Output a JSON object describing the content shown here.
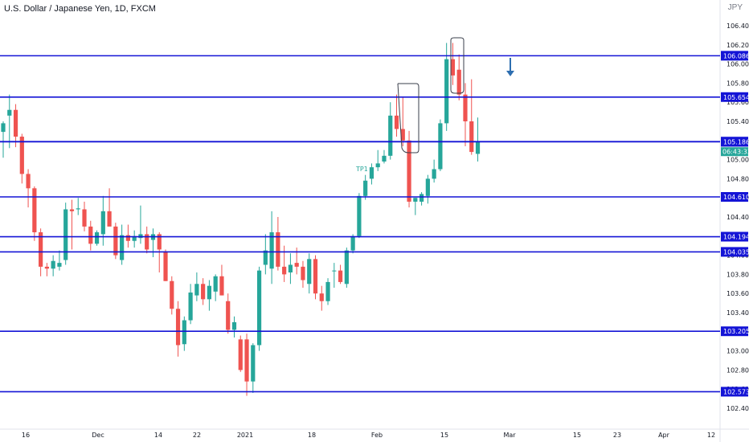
{
  "header": {
    "symbol_title": "U.S. Dollar / Japanese Yen, 1D, FXCM",
    "scale_indicator": "JPY"
  },
  "colors": {
    "up": "#26a69a",
    "down": "#ef5350",
    "level_line": "#1414d6",
    "label_bg": "#1414d6",
    "countdown_bg": "#26a69a",
    "annotation": "#2d6eb0"
  },
  "chart_data": {
    "type": "candlestick",
    "symbol": "U.S. Dollar / Japanese Yen",
    "interval": "1D",
    "source": "FXCM",
    "ylim": [
      102.3,
      106.55
    ],
    "y_ticks": [
      "106.400",
      "106.200",
      "106.000",
      "105.800",
      "105.600",
      "105.400",
      "105.200",
      "105.000",
      "104.800",
      "104.600",
      "104.400",
      "104.200",
      "104.000",
      "103.800",
      "103.600",
      "103.400",
      "103.200",
      "103.000",
      "102.800",
      "102.600",
      "102.400"
    ],
    "x_tick_labels": [
      "16",
      "Dec",
      "14",
      "22",
      "2021",
      "18",
      "Feb",
      "15",
      "Mar",
      "15",
      "23",
      "Apr",
      "12"
    ],
    "horizontal_levels": [
      "106.086",
      "105.654",
      "105.188",
      "105.186",
      "104.610",
      "104.194",
      "104.035",
      "103.205",
      "102.573"
    ],
    "price_label": "105.188",
    "countdown": "06:43:32",
    "annotations": [
      "TP1"
    ],
    "candles": [
      {
        "o": 105.29,
        "h": 105.4,
        "l": 105.02,
        "c": 105.38
      },
      {
        "o": 105.46,
        "h": 105.68,
        "l": 105.12,
        "c": 105.52
      },
      {
        "o": 105.52,
        "h": 105.58,
        "l": 105.13,
        "c": 105.24
      },
      {
        "o": 105.24,
        "h": 105.27,
        "l": 104.75,
        "c": 104.85
      },
      {
        "o": 104.85,
        "h": 104.9,
        "l": 104.5,
        "c": 104.7
      },
      {
        "o": 104.7,
        "h": 104.72,
        "l": 104.15,
        "c": 104.24
      },
      {
        "o": 104.24,
        "h": 104.28,
        "l": 103.78,
        "c": 103.88
      },
      {
        "o": 103.88,
        "h": 103.92,
        "l": 103.78,
        "c": 103.86
      },
      {
        "o": 103.86,
        "h": 104.0,
        "l": 103.78,
        "c": 103.94
      },
      {
        "o": 103.88,
        "h": 104.05,
        "l": 103.84,
        "c": 103.92
      },
      {
        "o": 103.95,
        "h": 104.55,
        "l": 103.9,
        "c": 104.48
      },
      {
        "o": 104.48,
        "h": 104.58,
        "l": 104.06,
        "c": 104.46
      },
      {
        "o": 104.48,
        "h": 104.6,
        "l": 104.42,
        "c": 104.49
      },
      {
        "o": 104.48,
        "h": 104.56,
        "l": 104.25,
        "c": 104.3
      },
      {
        "o": 104.3,
        "h": 104.36,
        "l": 104.05,
        "c": 104.12
      },
      {
        "o": 104.12,
        "h": 104.26,
        "l": 104.1,
        "c": 104.24
      },
      {
        "o": 104.22,
        "h": 104.62,
        "l": 104.1,
        "c": 104.46
      },
      {
        "o": 104.46,
        "h": 104.7,
        "l": 104.34,
        "c": 104.3
      },
      {
        "o": 104.3,
        "h": 104.34,
        "l": 103.96,
        "c": 104.0
      },
      {
        "o": 103.95,
        "h": 104.32,
        "l": 103.9,
        "c": 104.21
      },
      {
        "o": 104.21,
        "h": 104.32,
        "l": 104.08,
        "c": 104.15
      },
      {
        "o": 104.15,
        "h": 104.26,
        "l": 104.08,
        "c": 104.2
      },
      {
        "o": 104.18,
        "h": 104.52,
        "l": 104.12,
        "c": 104.22
      },
      {
        "o": 104.22,
        "h": 104.3,
        "l": 104.02,
        "c": 104.06
      },
      {
        "o": 104.16,
        "h": 104.28,
        "l": 103.98,
        "c": 104.22
      },
      {
        "o": 104.22,
        "h": 104.24,
        "l": 103.82,
        "c": 104.06
      },
      {
        "o": 104.04,
        "h": 104.06,
        "l": 103.73,
        "c": 103.73
      },
      {
        "o": 103.73,
        "h": 103.78,
        "l": 103.38,
        "c": 103.44
      },
      {
        "o": 103.44,
        "h": 103.52,
        "l": 102.94,
        "c": 103.06
      },
      {
        "o": 103.07,
        "h": 103.36,
        "l": 103.0,
        "c": 103.32
      },
      {
        "o": 103.32,
        "h": 103.7,
        "l": 103.28,
        "c": 103.61
      },
      {
        "o": 103.58,
        "h": 103.82,
        "l": 103.52,
        "c": 103.7
      },
      {
        "o": 103.7,
        "h": 103.76,
        "l": 103.48,
        "c": 103.54
      },
      {
        "o": 103.54,
        "h": 103.74,
        "l": 103.42,
        "c": 103.68
      },
      {
        "o": 103.62,
        "h": 103.8,
        "l": 103.52,
        "c": 103.78
      },
      {
        "o": 103.78,
        "h": 103.9,
        "l": 103.58,
        "c": 103.58
      },
      {
        "o": 103.52,
        "h": 103.6,
        "l": 103.18,
        "c": 103.22
      },
      {
        "o": 103.22,
        "h": 103.36,
        "l": 103.14,
        "c": 103.3
      },
      {
        "o": 103.12,
        "h": 103.16,
        "l": 102.78,
        "c": 102.8
      },
      {
        "o": 103.12,
        "h": 103.18,
        "l": 102.53,
        "c": 102.68
      },
      {
        "o": 102.68,
        "h": 103.08,
        "l": 102.56,
        "c": 103.06
      },
      {
        "o": 103.06,
        "h": 103.88,
        "l": 103.0,
        "c": 103.84
      },
      {
        "o": 103.9,
        "h": 104.22,
        "l": 103.8,
        "c": 104.05
      },
      {
        "o": 103.86,
        "h": 104.46,
        "l": 103.7,
        "c": 104.24
      },
      {
        "o": 104.24,
        "h": 104.4,
        "l": 103.84,
        "c": 103.88
      },
      {
        "o": 103.88,
        "h": 104.1,
        "l": 103.72,
        "c": 103.8
      },
      {
        "o": 103.82,
        "h": 104.02,
        "l": 103.7,
        "c": 103.9
      },
      {
        "o": 103.92,
        "h": 104.08,
        "l": 103.8,
        "c": 103.88
      },
      {
        "o": 103.88,
        "h": 103.94,
        "l": 103.66,
        "c": 103.74
      },
      {
        "o": 103.7,
        "h": 104.02,
        "l": 103.6,
        "c": 103.96
      },
      {
        "o": 103.96,
        "h": 104.0,
        "l": 103.54,
        "c": 103.6
      },
      {
        "o": 103.6,
        "h": 103.68,
        "l": 103.42,
        "c": 103.52
      },
      {
        "o": 103.52,
        "h": 103.76,
        "l": 103.48,
        "c": 103.72
      },
      {
        "o": 103.84,
        "h": 103.92,
        "l": 103.66,
        "c": 103.84
      },
      {
        "o": 103.84,
        "h": 103.9,
        "l": 103.7,
        "c": 103.72
      },
      {
        "o": 103.7,
        "h": 104.08,
        "l": 103.66,
        "c": 104.05
      },
      {
        "o": 104.05,
        "h": 104.22,
        "l": 104.02,
        "c": 104.2
      },
      {
        "o": 104.2,
        "h": 104.65,
        "l": 104.18,
        "c": 104.62
      },
      {
        "o": 104.62,
        "h": 104.84,
        "l": 104.58,
        "c": 104.78
      },
      {
        "o": 104.8,
        "h": 104.96,
        "l": 104.74,
        "c": 104.92
      },
      {
        "o": 104.92,
        "h": 105.1,
        "l": 104.88,
        "c": 104.96
      },
      {
        "o": 104.98,
        "h": 105.1,
        "l": 104.96,
        "c": 105.04
      },
      {
        "o": 105.04,
        "h": 105.6,
        "l": 105.0,
        "c": 105.46
      },
      {
        "o": 105.46,
        "h": 105.68,
        "l": 105.24,
        "c": 105.32
      },
      {
        "o": 105.32,
        "h": 105.66,
        "l": 105.14,
        "c": 105.2
      },
      {
        "o": 105.2,
        "h": 105.3,
        "l": 104.5,
        "c": 104.56
      },
      {
        "o": 104.56,
        "h": 104.6,
        "l": 104.42,
        "c": 104.6
      },
      {
        "o": 104.56,
        "h": 104.66,
        "l": 104.52,
        "c": 104.64
      },
      {
        "o": 104.62,
        "h": 104.84,
        "l": 104.54,
        "c": 104.8
      },
      {
        "o": 104.8,
        "h": 105.0,
        "l": 104.76,
        "c": 104.9
      },
      {
        "o": 104.9,
        "h": 105.42,
        "l": 104.88,
        "c": 105.38
      },
      {
        "o": 105.38,
        "h": 106.22,
        "l": 105.3,
        "c": 106.05
      },
      {
        "o": 106.05,
        "h": 106.22,
        "l": 105.78,
        "c": 105.88
      },
      {
        "o": 105.94,
        "h": 106.1,
        "l": 105.62,
        "c": 105.68
      },
      {
        "o": 105.68,
        "h": 105.8,
        "l": 105.14,
        "c": 105.4
      },
      {
        "o": 105.4,
        "h": 105.84,
        "l": 105.05,
        "c": 105.08
      },
      {
        "o": 105.06,
        "h": 105.44,
        "l": 104.98,
        "c": 105.19
      }
    ]
  }
}
